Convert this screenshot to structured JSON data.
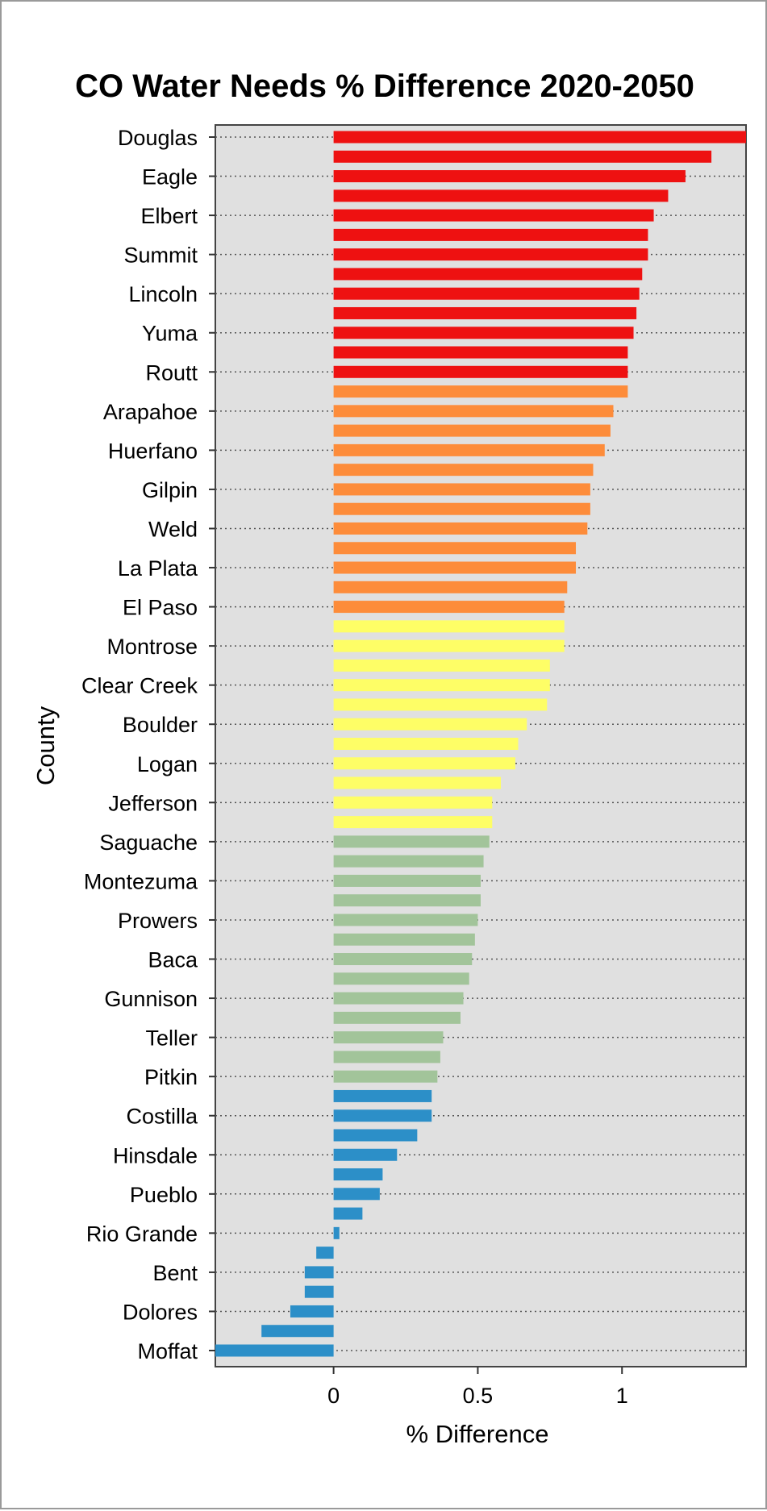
{
  "chart_data": {
    "type": "bar",
    "orientation": "horizontal",
    "title": "CO Water Needs % Difference 2020-2050",
    "xlabel": "% Difference",
    "ylabel": "County",
    "xlim": [
      -0.41,
      1.43
    ],
    "xticks": [
      0,
      0.5,
      1
    ],
    "xtick_labels": [
      "0",
      "0.5",
      "1"
    ],
    "grid": "horizontal dotted at labeled categories",
    "labeled_categories": [
      "Douglas",
      "Eagle",
      "Elbert",
      "Summit",
      "Lincoln",
      "Yuma",
      "Routt",
      "Arapahoe",
      "Huerfano",
      "Gilpin",
      "Weld",
      "La Plata",
      "El Paso",
      "Montrose",
      "Clear Creek",
      "Boulder",
      "Logan",
      "Jefferson",
      "Saguache",
      "Montezuma",
      "Prowers",
      "Baca",
      "Gunnison",
      "Teller",
      "Pitkin",
      "Costilla",
      "Hinsdale",
      "Pueblo",
      "Rio Grande",
      "Bent",
      "Dolores",
      "Moffat"
    ],
    "values": [
      1.43,
      1.31,
      1.22,
      1.16,
      1.11,
      1.09,
      1.09,
      1.07,
      1.06,
      1.05,
      1.04,
      1.02,
      1.02,
      1.02,
      0.97,
      0.96,
      0.94,
      0.9,
      0.89,
      0.89,
      0.88,
      0.84,
      0.84,
      0.81,
      0.8,
      0.8,
      0.8,
      0.75,
      0.75,
      0.74,
      0.67,
      0.64,
      0.63,
      0.58,
      0.55,
      0.55,
      0.54,
      0.52,
      0.51,
      0.51,
      0.5,
      0.49,
      0.48,
      0.47,
      0.45,
      0.44,
      0.38,
      0.37,
      0.36,
      0.34,
      0.34,
      0.29,
      0.22,
      0.17,
      0.16,
      0.1,
      0.02,
      -0.06,
      -0.1,
      -0.1,
      -0.15,
      -0.25,
      -0.41
    ],
    "group_colors": [
      "#ee1111",
      "#fd8c3a",
      "#fefe66",
      "#a2c49a",
      "#2c8fc8"
    ],
    "group_sizes": [
      13,
      12,
      11,
      13,
      14
    ]
  }
}
